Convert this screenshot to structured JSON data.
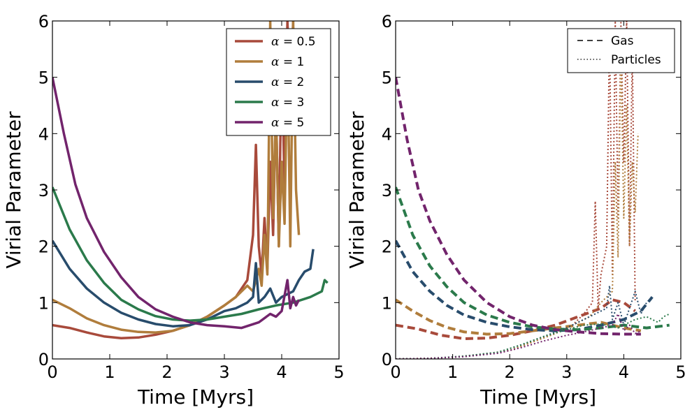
{
  "chart_data": [
    {
      "type": "line",
      "xlabel": "Time [Myrs]",
      "ylabel": "Virial Parameter",
      "xlim": [
        0,
        5
      ],
      "ylim": [
        0,
        6
      ],
      "xticks": [
        "0",
        "1",
        "2",
        "3",
        "4",
        "5"
      ],
      "yticks": [
        "0",
        "1",
        "2",
        "3",
        "4",
        "5",
        "6"
      ],
      "grid": false,
      "legend_position": "top-right",
      "legend": [
        {
          "symbol": "α",
          "text": " = 0.5",
          "color": "#a84a3b"
        },
        {
          "symbol": "α",
          "text": " = 1",
          "color": "#b07d3c"
        },
        {
          "symbol": "α",
          "text": " = 2",
          "color": "#284c6c"
        },
        {
          "symbol": "α",
          "text": " = 3",
          "color": "#2b7a4b"
        },
        {
          "symbol": "α",
          "text": " = 5",
          "color": "#72246c"
        }
      ],
      "series": [
        {
          "name": "α = 0.5",
          "color": "#a84a3b",
          "style": "solid",
          "x": [
            0,
            0.3,
            0.6,
            0.9,
            1.2,
            1.5,
            1.8,
            2.1,
            2.4,
            2.7,
            3.0,
            3.2,
            3.4,
            3.5,
            3.55,
            3.6,
            3.65,
            3.7,
            3.75,
            3.8,
            3.85,
            3.9,
            3.95,
            4.0,
            4.05,
            4.1,
            4.15,
            4.2
          ],
          "y": [
            0.6,
            0.55,
            0.47,
            0.4,
            0.37,
            0.38,
            0.43,
            0.5,
            0.6,
            0.75,
            0.95,
            1.1,
            1.4,
            2.2,
            3.8,
            2.0,
            1.5,
            2.5,
            1.6,
            3.5,
            2.2,
            4.5,
            2.0,
            5.5,
            3.0,
            6.0,
            4.5,
            6.0
          ]
        },
        {
          "name": "α = 1",
          "color": "#b07d3c",
          "style": "solid",
          "x": [
            0,
            0.3,
            0.6,
            0.9,
            1.2,
            1.5,
            1.8,
            2.1,
            2.4,
            2.7,
            3.0,
            3.2,
            3.4,
            3.5,
            3.6,
            3.65,
            3.7,
            3.75,
            3.8,
            3.85,
            3.9,
            3.95,
            4.0,
            4.05,
            4.1,
            4.15,
            4.2,
            4.25,
            4.3
          ],
          "y": [
            1.05,
            0.9,
            0.72,
            0.6,
            0.52,
            0.48,
            0.47,
            0.5,
            0.6,
            0.75,
            0.95,
            1.1,
            1.3,
            1.2,
            1.6,
            1.3,
            2.2,
            1.5,
            6.0,
            2.5,
            4.5,
            2.0,
            3.5,
            2.4,
            5.5,
            2.0,
            6.0,
            3.0,
            2.2
          ]
        },
        {
          "name": "α = 2",
          "color": "#284c6c",
          "style": "solid",
          "x": [
            0,
            0.3,
            0.6,
            0.9,
            1.2,
            1.5,
            1.8,
            2.1,
            2.4,
            2.7,
            3.0,
            3.2,
            3.4,
            3.5,
            3.55,
            3.6,
            3.7,
            3.8,
            3.9,
            4.0,
            4.1,
            4.2,
            4.3,
            4.4,
            4.5,
            4.55
          ],
          "y": [
            2.1,
            1.6,
            1.25,
            1.0,
            0.82,
            0.7,
            0.62,
            0.58,
            0.6,
            0.7,
            0.85,
            0.9,
            1.0,
            1.1,
            1.7,
            1.0,
            1.1,
            1.25,
            1.0,
            1.1,
            1.15,
            1.2,
            1.4,
            1.55,
            1.6,
            1.95
          ]
        },
        {
          "name": "α = 3",
          "color": "#2b7a4b",
          "style": "solid",
          "x": [
            0,
            0.3,
            0.6,
            0.9,
            1.2,
            1.5,
            1.8,
            2.1,
            2.4,
            2.7,
            3.0,
            3.3,
            3.6,
            3.9,
            4.2,
            4.5,
            4.7,
            4.75,
            4.8
          ],
          "y": [
            3.05,
            2.3,
            1.75,
            1.35,
            1.05,
            0.88,
            0.76,
            0.7,
            0.68,
            0.7,
            0.75,
            0.8,
            0.88,
            0.95,
            1.0,
            1.1,
            1.2,
            1.4,
            1.35
          ]
        },
        {
          "name": "α = 5",
          "color": "#72246c",
          "style": "solid",
          "x": [
            0,
            0.2,
            0.4,
            0.6,
            0.9,
            1.2,
            1.5,
            1.8,
            2.1,
            2.4,
            2.7,
            3.0,
            3.3,
            3.6,
            3.8,
            3.9,
            4.0,
            4.1,
            4.15,
            4.2,
            4.25,
            4.3
          ],
          "y": [
            5.0,
            4.0,
            3.1,
            2.5,
            1.9,
            1.45,
            1.1,
            0.88,
            0.75,
            0.65,
            0.6,
            0.58,
            0.55,
            0.65,
            0.8,
            0.75,
            0.85,
            1.4,
            0.9,
            1.1,
            0.95,
            1.05
          ]
        }
      ]
    },
    {
      "type": "line",
      "xlabel": "Time [Myrs]",
      "ylabel": "Virial Parameter",
      "xlim": [
        0,
        5
      ],
      "ylim": [
        0,
        6
      ],
      "xticks": [
        "0",
        "1",
        "2",
        "3",
        "4",
        "5"
      ],
      "yticks": [
        "0",
        "1",
        "2",
        "3",
        "4",
        "5",
        "6"
      ],
      "grid": false,
      "legend_position": "top-right",
      "legend": [
        {
          "text": "Gas",
          "style": "dashed"
        },
        {
          "text": "Particles",
          "style": "dotted"
        }
      ],
      "series": [
        {
          "color": "#a84a3b",
          "style": "dashed",
          "x": [
            0,
            0.4,
            0.8,
            1.2,
            1.6,
            2.0,
            2.4,
            2.8,
            3.2,
            3.6,
            3.8,
            4.0,
            4.2
          ],
          "y": [
            0.6,
            0.53,
            0.42,
            0.36,
            0.37,
            0.42,
            0.5,
            0.6,
            0.75,
            0.9,
            1.05,
            1.0,
            0.85
          ]
        },
        {
          "color": "#b07d3c",
          "style": "dashed",
          "x": [
            0,
            0.3,
            0.6,
            0.9,
            1.2,
            1.6,
            2.0,
            2.4,
            2.8,
            3.2,
            3.6,
            4.0,
            4.3
          ],
          "y": [
            1.05,
            0.85,
            0.68,
            0.56,
            0.48,
            0.44,
            0.45,
            0.5,
            0.55,
            0.6,
            0.65,
            0.55,
            0.5
          ]
        },
        {
          "color": "#284c6c",
          "style": "dashed",
          "x": [
            0,
            0.3,
            0.6,
            0.9,
            1.2,
            1.6,
            2.0,
            2.4,
            2.8,
            3.2,
            3.6,
            4.0,
            4.3,
            4.5
          ],
          "y": [
            2.1,
            1.55,
            1.2,
            0.95,
            0.78,
            0.65,
            0.57,
            0.52,
            0.5,
            0.52,
            0.6,
            0.7,
            0.85,
            1.1
          ]
        },
        {
          "color": "#2b7a4b",
          "style": "dashed",
          "x": [
            0,
            0.3,
            0.6,
            0.9,
            1.2,
            1.6,
            2.0,
            2.4,
            2.8,
            3.2,
            3.6,
            4.0,
            4.4,
            4.8
          ],
          "y": [
            3.05,
            2.2,
            1.65,
            1.28,
            1.0,
            0.78,
            0.65,
            0.57,
            0.53,
            0.52,
            0.55,
            0.6,
            0.55,
            0.6
          ]
        },
        {
          "color": "#72246c",
          "style": "dashed",
          "x": [
            0,
            0.2,
            0.4,
            0.6,
            0.9,
            1.2,
            1.6,
            2.0,
            2.4,
            2.8,
            3.2,
            3.6,
            4.0,
            4.3
          ],
          "y": [
            5.0,
            3.9,
            3.0,
            2.45,
            1.85,
            1.4,
            1.0,
            0.75,
            0.6,
            0.52,
            0.48,
            0.45,
            0.44,
            0.44
          ]
        },
        {
          "color": "#a84a3b",
          "style": "dotted",
          "x": [
            0,
            0.5,
            1.0,
            1.5,
            2.0,
            2.4,
            2.8,
            3.1,
            3.3,
            3.45,
            3.5,
            3.55,
            3.6,
            3.7,
            3.75,
            3.8,
            3.85,
            3.9,
            3.95,
            4.0,
            4.05,
            4.1,
            4.15,
            4.2
          ],
          "y": [
            0,
            0.01,
            0.03,
            0.08,
            0.15,
            0.3,
            0.45,
            0.6,
            0.8,
            1.0,
            2.8,
            0.9,
            1.5,
            2.0,
            5.8,
            1.5,
            6.0,
            2.5,
            6.0,
            3.5,
            6.0,
            2.0,
            5.5,
            1.0
          ]
        },
        {
          "color": "#b07d3c",
          "style": "dotted",
          "x": [
            0,
            0.5,
            1.0,
            1.5,
            2.0,
            2.4,
            2.8,
            3.1,
            3.4,
            3.6,
            3.8,
            3.85,
            3.9,
            3.95,
            4.0,
            4.05,
            4.1,
            4.15,
            4.2,
            4.25
          ],
          "y": [
            0,
            0.01,
            0.03,
            0.08,
            0.15,
            0.3,
            0.45,
            0.6,
            0.75,
            1.0,
            1.2,
            3.5,
            1.8,
            5.5,
            2.5,
            4.5,
            2.0,
            3.5,
            2.6,
            4.0
          ]
        },
        {
          "color": "#284c6c",
          "style": "dotted",
          "x": [
            0,
            0.6,
            1.2,
            1.8,
            2.2,
            2.6,
            3.0,
            3.3,
            3.5,
            3.7,
            3.75,
            3.8,
            3.9,
            4.0,
            4.1,
            4.2,
            4.3,
            4.4,
            4.5
          ],
          "y": [
            0,
            0.01,
            0.05,
            0.12,
            0.25,
            0.4,
            0.55,
            0.7,
            0.8,
            0.9,
            1.3,
            0.7,
            1.0,
            0.6,
            0.9,
            1.2,
            0.8,
            1.0,
            1.1
          ]
        },
        {
          "color": "#2b7a4b",
          "style": "dotted",
          "x": [
            0,
            0.6,
            1.2,
            1.8,
            2.2,
            2.6,
            3.0,
            3.3,
            3.6,
            3.9,
            4.2,
            4.4,
            4.6,
            4.7,
            4.8
          ],
          "y": [
            0,
            0.01,
            0.05,
            0.12,
            0.25,
            0.4,
            0.52,
            0.6,
            0.62,
            0.55,
            0.7,
            0.75,
            0.65,
            0.75,
            0.8
          ]
        },
        {
          "color": "#72246c",
          "style": "dotted",
          "x": [
            0,
            0.6,
            1.2,
            1.8,
            2.2,
            2.6,
            3.0,
            3.3,
            3.6,
            3.8,
            3.9,
            4.0,
            4.1,
            4.2,
            4.3
          ],
          "y": [
            0,
            0.01,
            0.04,
            0.1,
            0.2,
            0.32,
            0.42,
            0.48,
            0.55,
            0.6,
            0.8,
            0.5,
            0.6,
            0.45,
            0.5
          ]
        }
      ]
    }
  ]
}
